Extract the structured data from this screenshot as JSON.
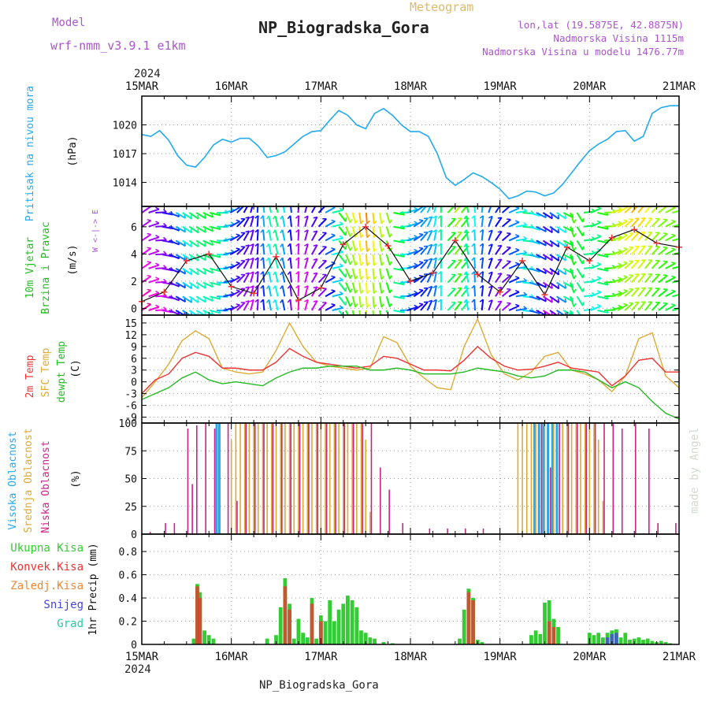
{
  "header": {
    "model_label": "Model",
    "model_value": "wrf-nmm_v3.9.1 e1km",
    "product": "Meteogram",
    "station": "NP_Biogradska_Gora",
    "coords": "lon,lat (19.5875E, 42.8875N)",
    "altitude": "Nadmorska Visina 1115m",
    "model_altitude": "Nadmorska Visina u modelu 1476.77m",
    "year": "2024",
    "footer_station": "NP_Biogradska_Gora",
    "credit": "made by Angel"
  },
  "colors": {
    "pressure": "#22aaee",
    "temp2m": "#ee3333",
    "sfc": "#ddaa33",
    "dew": "#22bb22",
    "high_cloud": "#22aaee",
    "mid_cloud": "#ddaa33",
    "low_cloud": "#cc2288",
    "precip_total": "#33cc33",
    "precip_conv": "#ee3333",
    "precip_frz": "#ee8833",
    "precip_snow": "#4444dd",
    "precip_grad": "#22ccaa"
  },
  "x_ticks": [
    "15MAR",
    "16MAR",
    "17MAR",
    "18MAR",
    "19MAR",
    "20MAR",
    "21MAR"
  ],
  "panels": {
    "pressure": {
      "ylabel": "Pritisak na nivou mora",
      "unit": "(hPa)",
      "yticks": [
        "1014",
        "1017",
        "1020"
      ]
    },
    "wind": {
      "ylabel_1": "10m Vjetar",
      "ylabel_2": "Brzina i Pravac",
      "unit": "(m/s)",
      "compass": "W <-|-> E",
      "yticks": [
        "0",
        "2",
        "4",
        "6"
      ]
    },
    "temp": {
      "label_2m": "2m Temp",
      "label_sfc": "SFC Temp",
      "label_dew": "dewpt Temp",
      "unit": "(C)",
      "yticks": [
        "-9",
        "-6",
        "-3",
        "0",
        "3",
        "6",
        "9",
        "12",
        "15"
      ]
    },
    "cloud": {
      "label_high": "Visoka Oblacnost",
      "label_mid": "Srednja Oblacnost",
      "label_low": "Niska Oblacnost",
      "unit": "(%)",
      "yticks": [
        "0",
        "25",
        "50",
        "75",
        "100"
      ]
    },
    "precip": {
      "label_total": "Ukupna Kisa",
      "label_conv": "Konvek.Kisa",
      "label_frz": "Zaledj.Kisa",
      "label_snow": "Snijeg",
      "label_grad": "Grad",
      "ylabel": "1hr Precip (mm)",
      "yticks": [
        "0",
        "0.2",
        "0.4",
        "0.6",
        "0.8"
      ]
    }
  },
  "chart_data": [
    {
      "type": "line",
      "title": "Pritisak na nivou mora",
      "ylabel": "(hPa)",
      "ylim": [
        1011.5,
        1023
      ],
      "x_unit": "days since 15MAR 00Z",
      "series": [
        {
          "name": "Pritisak na nivou mora",
          "x": [
            0,
            0.1,
            0.2,
            0.3,
            0.4,
            0.5,
            0.6,
            0.7,
            0.8,
            0.9,
            1.0,
            1.1,
            1.2,
            1.3,
            1.4,
            1.5,
            1.6,
            1.7,
            1.8,
            1.9,
            2.0,
            2.1,
            2.2,
            2.3,
            2.4,
            2.5,
            2.6,
            2.7,
            2.8,
            2.9,
            3.0,
            3.1,
            3.2,
            3.3,
            3.4,
            3.5,
            3.6,
            3.7,
            3.8,
            3.9,
            4.0,
            4.1,
            4.2,
            4.3,
            4.4,
            4.5,
            4.6,
            4.7,
            4.8,
            4.9,
            5.0,
            5.1,
            5.2,
            5.3,
            5.4,
            5.5,
            5.6,
            5.7,
            5.8,
            5.9,
            6.0
          ],
          "y": [
            1019.0,
            1018.8,
            1019.4,
            1018.4,
            1016.8,
            1015.8,
            1015.6,
            1016.6,
            1017.9,
            1018.5,
            1018.2,
            1018.6,
            1018.6,
            1017.8,
            1016.6,
            1016.8,
            1017.2,
            1018.0,
            1018.8,
            1019.3,
            1019.4,
            1020.5,
            1021.5,
            1021.0,
            1020.0,
            1019.6,
            1021.2,
            1021.7,
            1021.0,
            1020.0,
            1019.3,
            1019.3,
            1018.8,
            1017.0,
            1014.5,
            1013.7,
            1014.3,
            1015.0,
            1014.6,
            1014.0,
            1013.3,
            1012.3,
            1012.6,
            1013.1,
            1013.0,
            1012.6,
            1012.9,
            1013.8,
            1015.0,
            1016.2,
            1017.3,
            1018.0,
            1018.5,
            1019.3,
            1019.4,
            1018.3,
            1018.8,
            1021.2,
            1021.8,
            1022.0,
            1022.0
          ]
        }
      ]
    },
    {
      "type": "line",
      "title": "10m Vjetar Brzina i Pravac",
      "ylabel": "(m/s)",
      "ylim": [
        -0.5,
        7.5
      ],
      "series": [
        {
          "name": "10m Vjetar",
          "x": [
            0,
            0.25,
            0.5,
            0.75,
            1.0,
            1.25,
            1.5,
            1.75,
            2.0,
            2.25,
            2.5,
            2.75,
            3.0,
            3.25,
            3.5,
            3.75,
            4.0,
            4.25,
            4.5,
            4.75,
            5.0,
            5.25,
            5.5,
            5.75,
            6.0
          ],
          "y": [
            0.5,
            1.2,
            3.5,
            4.0,
            1.6,
            1.1,
            3.8,
            0.6,
            1.5,
            4.7,
            6.0,
            4.6,
            2.0,
            2.6,
            5.0,
            2.5,
            1.2,
            3.5,
            1.0,
            4.5,
            3.5,
            5.2,
            5.8,
            4.8,
            4.5
          ]
        }
      ]
    },
    {
      "type": "line",
      "title": "Temp",
      "ylabel": "(C)",
      "ylim": [
        -10.5,
        17
      ],
      "series": [
        {
          "name": "2m Temp",
          "x": [
            0,
            0.15,
            0.3,
            0.45,
            0.6,
            0.75,
            0.9,
            1.05,
            1.2,
            1.35,
            1.5,
            1.65,
            1.8,
            1.95,
            2.1,
            2.25,
            2.4,
            2.55,
            2.7,
            2.85,
            3.0,
            3.15,
            3.3,
            3.45,
            3.6,
            3.75,
            3.9,
            4.05,
            4.2,
            4.35,
            4.5,
            4.65,
            4.8,
            4.95,
            5.1,
            5.25,
            5.4,
            5.55,
            5.7,
            5.85,
            6.0
          ],
          "y": [
            -3.0,
            0.5,
            2.0,
            6.0,
            7.5,
            6.5,
            3.5,
            3.5,
            3.0,
            3.0,
            5.0,
            8.5,
            6.5,
            5.0,
            4.5,
            4.0,
            3.5,
            4.0,
            6.5,
            6.0,
            4.5,
            3.0,
            3.0,
            2.8,
            5.5,
            9.0,
            6.0,
            4.0,
            3.0,
            3.2,
            4.0,
            5.0,
            3.5,
            3.0,
            2.5,
            -1.0,
            1.5,
            5.5,
            6.0,
            2.5,
            2.5
          ]
        },
        {
          "name": "SFC Temp",
          "x": [
            0,
            0.15,
            0.3,
            0.45,
            0.6,
            0.75,
            0.9,
            1.05,
            1.2,
            1.35,
            1.5,
            1.65,
            1.8,
            1.95,
            2.1,
            2.25,
            2.4,
            2.55,
            2.7,
            2.85,
            3.0,
            3.15,
            3.3,
            3.45,
            3.6,
            3.75,
            3.9,
            4.05,
            4.2,
            4.35,
            4.5,
            4.65,
            4.8,
            4.95,
            5.1,
            5.25,
            5.4,
            5.55,
            5.7,
            5.85,
            6.0
          ],
          "y": [
            -4.0,
            0.0,
            4.5,
            10.5,
            13.0,
            11.0,
            3.5,
            2.5,
            2.0,
            2.5,
            8.0,
            15.0,
            9.0,
            5.0,
            4.0,
            3.5,
            3.0,
            3.5,
            11.5,
            10.0,
            4.0,
            1.0,
            -1.5,
            -2.0,
            9.0,
            16.0,
            7.0,
            2.0,
            0.5,
            2.5,
            6.5,
            7.5,
            3.0,
            2.0,
            0.5,
            -2.5,
            1.5,
            11.0,
            12.5,
            1.5,
            -1.5
          ]
        },
        {
          "name": "dewpt Temp",
          "x": [
            0,
            0.15,
            0.3,
            0.45,
            0.6,
            0.75,
            0.9,
            1.05,
            1.2,
            1.35,
            1.5,
            1.65,
            1.8,
            1.95,
            2.1,
            2.25,
            2.4,
            2.55,
            2.7,
            2.85,
            3.0,
            3.15,
            3.3,
            3.45,
            3.6,
            3.75,
            3.9,
            4.05,
            4.2,
            4.35,
            4.5,
            4.65,
            4.8,
            4.95,
            5.1,
            5.25,
            5.4,
            5.55,
            5.7,
            5.85,
            6.0
          ],
          "y": [
            -4.5,
            -3.0,
            -1.5,
            1.0,
            2.5,
            0.5,
            -0.5,
            0.0,
            -0.5,
            -1.0,
            1.0,
            2.5,
            3.5,
            3.5,
            4.0,
            4.0,
            4.0,
            3.0,
            3.0,
            3.5,
            3.0,
            2.0,
            2.0,
            2.0,
            2.5,
            3.5,
            3.0,
            2.5,
            1.5,
            1.0,
            1.5,
            3.0,
            3.0,
            2.5,
            0.5,
            -1.5,
            0.0,
            -1.5,
            -5.0,
            -8.0,
            -9.5
          ]
        }
      ]
    },
    {
      "type": "bar",
      "title": "Oblacnost",
      "ylabel": "(%)",
      "ylim": [
        0,
        100
      ],
      "series": [
        {
          "name": "Visoka Oblacnost",
          "x": [
            0.85,
            0.88,
            4.4,
            4.45,
            4.5,
            4.55,
            4.6,
            4.65
          ],
          "y": [
            100,
            100,
            100,
            100,
            100,
            100,
            100,
            100
          ]
        },
        {
          "name": "Srednja Oblacnost",
          "x": [
            1.0,
            1.05,
            1.1,
            1.15,
            1.2,
            1.25,
            1.3,
            1.35,
            1.4,
            1.45,
            1.5,
            1.55,
            1.6,
            1.65,
            1.7,
            1.75,
            1.8,
            1.85,
            1.9,
            1.95,
            2.0,
            2.05,
            2.1,
            2.15,
            2.2,
            2.25,
            2.3,
            2.35,
            2.4,
            2.45,
            2.5,
            2.55,
            4.2,
            4.25,
            4.3,
            4.35,
            4.4,
            4.5,
            4.6,
            4.7,
            4.75,
            4.8,
            4.85,
            4.9,
            4.95,
            5.0,
            5.05,
            5.1,
            5.15
          ],
          "y": [
            85,
            100,
            100,
            100,
            100,
            100,
            100,
            100,
            100,
            100,
            100,
            100,
            100,
            100,
            100,
            100,
            100,
            100,
            100,
            100,
            100,
            100,
            100,
            100,
            100,
            100,
            100,
            100,
            100,
            100,
            85,
            20,
            100,
            100,
            100,
            100,
            100,
            100,
            100,
            100,
            100,
            100,
            100,
            100,
            100,
            100,
            100,
            85,
            30
          ]
        },
        {
          "name": "Niska Oblacnost",
          "x": [
            0.08,
            0.25,
            0.35,
            0.5,
            0.55,
            0.6,
            0.7,
            0.8,
            0.95,
            1.05,
            1.15,
            1.25,
            1.35,
            1.45,
            1.55,
            1.65,
            1.75,
            1.85,
            1.95,
            2.05,
            2.15,
            2.25,
            2.35,
            2.45,
            2.55,
            2.65,
            2.75,
            2.9,
            3.2,
            3.4,
            3.6,
            3.8,
            4.45,
            4.55,
            4.65,
            4.75,
            4.85,
            4.95,
            5.05,
            5.15,
            5.25,
            5.35,
            5.5,
            5.65,
            5.75,
            5.95
          ],
          "y": [
            2,
            10,
            10,
            95,
            45,
            98,
            100,
            95,
            100,
            30,
            100,
            100,
            100,
            100,
            100,
            100,
            100,
            100,
            100,
            100,
            100,
            100,
            100,
            100,
            100,
            60,
            40,
            10,
            5,
            5,
            5,
            5,
            100,
            60,
            100,
            100,
            100,
            100,
            100,
            100,
            100,
            95,
            100,
            95,
            10,
            10
          ]
        }
      ]
    },
    {
      "type": "bar",
      "title": "1hr Precip",
      "ylabel": "1hr Precip (mm)",
      "ylim": [
        0,
        0.95
      ],
      "series": [
        {
          "name": "Ukupna Kisa",
          "x": [
            0.58,
            0.62,
            0.65,
            0.7,
            0.75,
            0.8,
            1.4,
            1.5,
            1.55,
            1.6,
            1.65,
            1.7,
            1.75,
            1.8,
            1.85,
            1.9,
            1.95,
            2.0,
            2.05,
            2.1,
            2.15,
            2.2,
            2.25,
            2.3,
            2.35,
            2.4,
            2.45,
            2.5,
            2.55,
            2.6,
            2.7,
            2.8,
            3.55,
            3.6,
            3.65,
            3.7,
            3.75,
            3.8,
            4.35,
            4.4,
            4.45,
            4.5,
            4.55,
            4.6,
            4.65,
            5.0,
            5.05,
            5.1,
            5.15,
            5.2,
            5.25,
            5.3,
            5.35,
            5.4,
            5.45,
            5.5,
            5.55,
            5.6,
            5.65,
            5.7,
            5.75,
            5.8,
            5.85,
            5.9
          ],
          "y": [
            0.05,
            0.52,
            0.45,
            0.12,
            0.08,
            0.05,
            0.05,
            0.08,
            0.32,
            0.57,
            0.35,
            0.05,
            0.22,
            0.1,
            0.06,
            0.4,
            0.05,
            0.25,
            0.2,
            0.38,
            0.2,
            0.3,
            0.35,
            0.42,
            0.38,
            0.32,
            0.12,
            0.1,
            0.06,
            0.05,
            0.02,
            0.01,
            0.05,
            0.3,
            0.48,
            0.4,
            0.04,
            0.02,
            0.08,
            0.12,
            0.09,
            0.36,
            0.38,
            0.22,
            0.15,
            0.1,
            0.08,
            0.1,
            0.06,
            0.1,
            0.12,
            0.13,
            0.06,
            0.1,
            0.04,
            0.05,
            0.06,
            0.04,
            0.05,
            0.03,
            0.02,
            0.03,
            0.02,
            0.01
          ]
        },
        {
          "name": "Konvek.Kisa",
          "x": [
            0.62,
            0.65,
            1.6,
            1.65,
            1.9,
            2.0,
            3.65,
            3.7,
            4.55,
            4.6
          ],
          "y": [
            0.5,
            0.4,
            0.5,
            0.3,
            0.35,
            0.2,
            0.45,
            0.38,
            0.2,
            0.15
          ]
        },
        {
          "name": "Snijeg",
          "x": [
            5.2,
            5.25,
            5.3
          ],
          "y": [
            0.06,
            0.09,
            0.1
          ]
        }
      ]
    }
  ]
}
